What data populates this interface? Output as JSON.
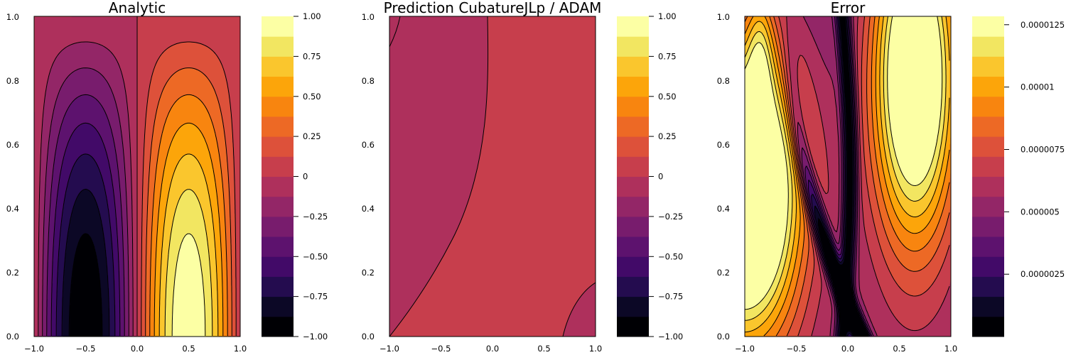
{
  "chart_data": [
    {
      "type": "contour",
      "title": "Analytic",
      "xlabel": "",
      "ylabel": "",
      "xlim": [
        -1.0,
        1.0
      ],
      "ylim": [
        0.0,
        1.0
      ],
      "xticks": [
        -1.0,
        -0.5,
        0.0,
        0.5,
        1.0
      ],
      "xtick_labels": [
        "−1.0",
        "−0.5",
        "0.0",
        "0.5",
        "1.0"
      ],
      "yticks": [
        0.0,
        0.2,
        0.4,
        0.6,
        0.8,
        1.0
      ],
      "ytick_labels": [
        "0.0",
        "0.2",
        "0.4",
        "0.6",
        "0.8",
        "1.0"
      ],
      "field": "u(x,y) = sin(pi*x) * cos(pi*y/2)",
      "min_value": -1.0,
      "max_value": 1.0,
      "colormap": "inferno",
      "colorbar": {
        "ticks": [
          -1.0,
          -0.75,
          -0.5,
          -0.25,
          0.0,
          0.25,
          0.5,
          0.75,
          1.0
        ],
        "tick_labels": [
          "−1.00",
          "−0.75",
          "−0.50",
          "−0.25",
          "0",
          "0.25",
          "0.50",
          "0.75",
          "1.00"
        ],
        "min": -1.0,
        "max": 1.0,
        "levels": 16
      }
    },
    {
      "type": "contour",
      "title": "Prediction CubatureJLp / ADAM",
      "xlabel": "",
      "ylabel": "",
      "xlim": [
        -1.0,
        1.0
      ],
      "ylim": [
        0.0,
        1.0
      ],
      "xticks": [
        -1.0,
        -0.5,
        0.0,
        0.5,
        1.0
      ],
      "xtick_labels": [
        "−1.0",
        "−0.5",
        "0.0",
        "0.5",
        "1.0"
      ],
      "yticks": [
        0.0,
        0.2,
        0.4,
        0.6,
        0.8,
        1.0
      ],
      "ytick_labels": [
        "0.0",
        "0.2",
        "0.4",
        "0.6",
        "0.8",
        "1.0"
      ],
      "field": "prediction, near zero everywhere",
      "regions": [
        {
          "label": "-0.125 to 0",
          "approx_boundary_x_at_y0": -1.0,
          "approx_boundary_x_at_y1": -0.05
        },
        {
          "label": "0 to 0.125",
          "note": "dominant region"
        },
        {
          "label": "-0.125 to 0",
          "note": "small corner near x=1, y=0"
        }
      ],
      "colormap": "inferno",
      "colorbar": {
        "ticks": [
          -1.0,
          -0.75,
          -0.5,
          -0.25,
          0.0,
          0.25,
          0.5,
          0.75,
          1.0
        ],
        "tick_labels": [
          "−1.00",
          "−0.75",
          "−0.50",
          "−0.25",
          "0",
          "0.25",
          "0.50",
          "0.75",
          "1.00"
        ],
        "min": -1.0,
        "max": 1.0,
        "levels": 16
      }
    },
    {
      "type": "contour",
      "title": "Error",
      "xlabel": "",
      "ylabel": "",
      "xlim": [
        -1.0,
        1.0
      ],
      "ylim": [
        0.0,
        1.0
      ],
      "xticks": [
        -1.0,
        -0.5,
        0.0,
        0.5,
        1.0
      ],
      "xtick_labels": [
        "−1.0",
        "−0.5",
        "0.0",
        "0.5",
        "1.0"
      ],
      "yticks": [
        0.0,
        0.2,
        0.4,
        0.6,
        0.8,
        1.0
      ],
      "ytick_labels": [
        "0.0",
        "0.2",
        "0.4",
        "0.6",
        "0.8",
        "1.0"
      ],
      "field": "absolute error",
      "max_location": {
        "x": -1.0,
        "y": 0.45,
        "value": 1.28e-05
      },
      "secondary_max_location": {
        "x": 0.65,
        "y": 0.78,
        "value": 1.05e-05
      },
      "colormap": "inferno",
      "colorbar": {
        "ticks": [
          2.5e-06,
          5e-06,
          7.5e-06,
          1e-05,
          1.25e-05
        ],
        "tick_labels": [
          "0.0000025",
          "0.000005",
          "0.0000075",
          "0.00001",
          "0.0000125"
        ],
        "min": 0.0,
        "max": 1.28e-05,
        "levels": 16
      }
    }
  ],
  "colors": {
    "palette_16": [
      "#000004",
      "#0c0826",
      "#240c4f",
      "#420a68",
      "#5d126e",
      "#781c6d",
      "#932667",
      "#ae305c",
      "#c73e4c",
      "#dd513a",
      "#ed6925",
      "#f8850f",
      "#fca50a",
      "#fac62d",
      "#f2e661",
      "#fcffa4"
    ],
    "contour_line": "#000000",
    "frame": "#000000"
  }
}
